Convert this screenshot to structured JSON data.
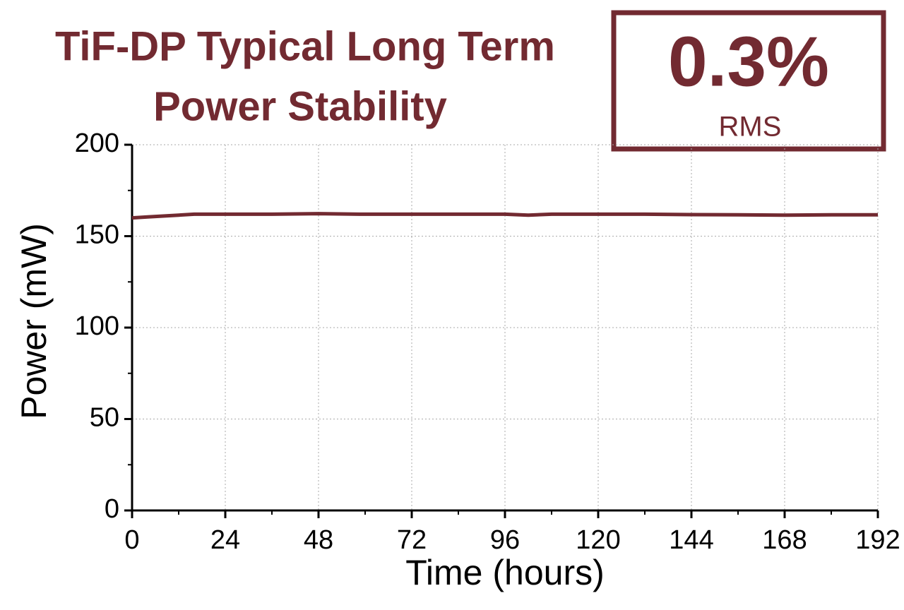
{
  "chart_data": {
    "type": "line",
    "title": [
      "TiF-DP Typical Long Term",
      "Power Stability"
    ],
    "annotations": [
      "0.3%",
      "RMS"
    ],
    "x_label": "Time (hours)",
    "y_label": "Power (mW)",
    "series": [
      {
        "name": "Power",
        "color": "#722a31",
        "x": [
          0,
          4,
          8,
          12,
          16,
          20,
          24,
          36,
          48,
          60,
          72,
          84,
          96,
          102,
          108,
          120,
          132,
          144,
          156,
          168,
          180,
          192
        ],
        "values": [
          160,
          160.5,
          161,
          161.5,
          162,
          162,
          162,
          162,
          162.3,
          162,
          162,
          162,
          162,
          161.5,
          162,
          162,
          162,
          161.8,
          161.7,
          161.5,
          161.7,
          161.7
        ]
      }
    ],
    "xlim": [
      0,
      192
    ],
    "xticks": [
      0,
      24,
      48,
      72,
      96,
      120,
      144,
      168,
      192
    ],
    "ylim": [
      0,
      200
    ],
    "yticks": [
      0,
      50,
      100,
      150,
      200
    ],
    "grid": true
  }
}
